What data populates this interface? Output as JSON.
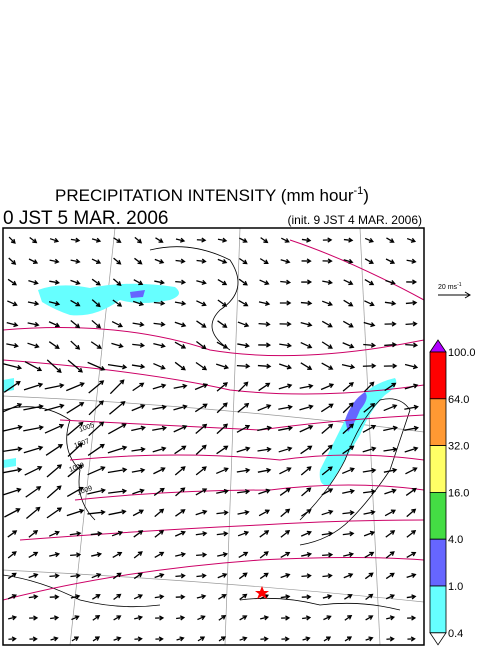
{
  "header": {
    "title_main": "PRECIPITATION INTENSITY (mm hour",
    "title_sup": "-1",
    "title_end": ")",
    "valid_time": "0 JST 5 MAR. 2006",
    "init_time": "(init. 9 JST 4 MAR. 2006)"
  },
  "wind_scale": {
    "label": "20 ms",
    "sup": "-1"
  },
  "colorbar": {
    "labels": [
      "100.0",
      "64.0",
      "32.0",
      "16.0",
      "4.0",
      "1.0",
      "0.4"
    ],
    "colors": [
      "#b000ff",
      "#ff0000",
      "#ff9933",
      "#ffff66",
      "#44dd44",
      "#6666ff",
      "#66ffff",
      "#ffffff"
    ]
  },
  "isobar_labels": [
    "1005",
    "1007",
    "1009",
    "1009"
  ]
}
